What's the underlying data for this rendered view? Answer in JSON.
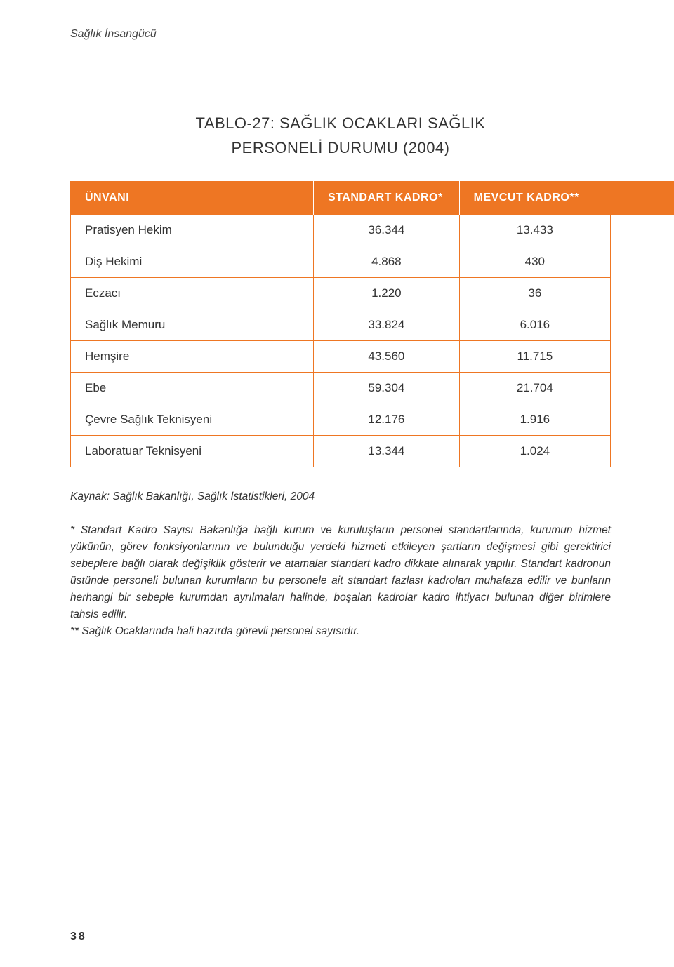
{
  "colors": {
    "accent": "#ee7623",
    "text": "#333333",
    "background": "#ffffff",
    "header_text": "#ffffff"
  },
  "section_label": "Sağlık İnsangücü",
  "title": {
    "line1": "TABLO-27: SAĞLIK OCAKLARI SAĞLIK",
    "line2": "PERSONELİ DURUMU (2004)"
  },
  "table": {
    "columns": [
      "ÜNVANI",
      "STANDART KADRO*",
      "MEVCUT KADRO**"
    ],
    "rows": [
      [
        "Pratisyen Hekim",
        "36.344",
        "13.433"
      ],
      [
        "Diş Hekimi",
        "4.868",
        "430"
      ],
      [
        "Eczacı",
        "1.220",
        "36"
      ],
      [
        "Sağlık Memuru",
        "33.824",
        "6.016"
      ],
      [
        "Hemşire",
        "43.560",
        "11.715"
      ],
      [
        "Ebe",
        "59.304",
        "21.704"
      ],
      [
        "Çevre Sağlık Teknisyeni",
        "12.176",
        "1.916"
      ],
      [
        "Laboratuar Teknisyeni",
        "13.344",
        "1.024"
      ]
    ]
  },
  "notes": {
    "source": "Kaynak: Sağlık Bakanlığı, Sağlık İstatistikleri, 2004",
    "note1": "* Standart Kadro Sayısı Bakanlığa bağlı kurum ve kuruluşların personel standartlarında, kurumun hizmet yükünün, görev fonksiyonlarının ve bulunduğu yerdeki hizmeti etkileyen şartların değişmesi gibi gerektirici sebeplere bağlı olarak değişiklik gösterir ve atamalar standart kadro dikkate alınarak yapılır. Standart kadronun üstünde personeli bulunan kurumların bu personele ait standart fazlası kadroları muhafaza edilir ve bunların herhangi bir sebeple kurumdan ayrılmaları halinde, boşalan kadrolar kadro ihtiyacı bulunan diğer birimlere tahsis edilir.",
    "note2": "** Sağlık Ocaklarında hali hazırda görevli personel sayısıdır."
  },
  "page_number": "38"
}
